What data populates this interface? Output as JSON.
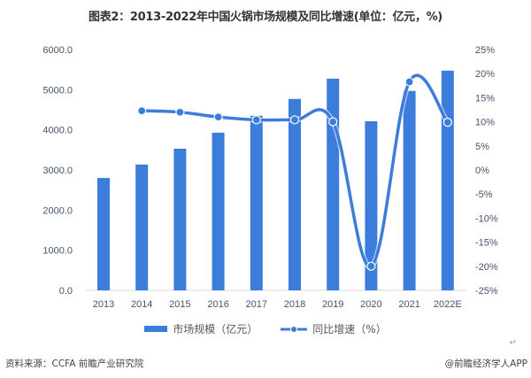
{
  "title": "图表2：2013-2022年中国火锅市场规模及同比增速(单位：亿元，%)",
  "legend": {
    "bar_label": "市场规模（亿元）",
    "line_label": "同比增速（%）"
  },
  "footer": {
    "source": "资料来源：CCFA 前瞻产业研究院",
    "credit": "@前瞻经济学人APP",
    "return_mark": "↵"
  },
  "colors": {
    "bar": "#3c7ddb",
    "line": "#3c7ddb",
    "axis_text": "#44546a",
    "axis_line": "#d9d9d9"
  },
  "chart_data": {
    "type": "bar",
    "title": "图表2：2013-2022年中国火锅市场规模及同比增速(单位：亿元，%)",
    "categories": [
      "2013",
      "2014",
      "2015",
      "2016",
      "2017",
      "2018",
      "2019",
      "2020",
      "2021",
      "2022E"
    ],
    "series": [
      {
        "name": "市场规模（亿元）",
        "type": "bar",
        "axis": "left",
        "values": [
          2800,
          3135,
          3530,
          3930,
          4350,
          4770,
          5275,
          4215,
          4970,
          5475
        ]
      },
      {
        "name": "同比增速（%）",
        "type": "line",
        "axis": "right",
        "values": [
          null,
          12.3,
          12.0,
          11.0,
          10.4,
          10.4,
          10.0,
          -20.0,
          18.3,
          9.9
        ]
      }
    ],
    "y_left": {
      "ticks": [
        "0.0",
        "1000.0",
        "2000.0",
        "3000.0",
        "4000.0",
        "5000.0",
        "6000.0"
      ],
      "range": [
        0,
        6000
      ]
    },
    "y_right": {
      "ticks": [
        "25%",
        "20%",
        "15%",
        "10%",
        "5%",
        "0%",
        "-5%",
        "-10%",
        "-15%",
        "-20%",
        "-25%"
      ],
      "range": [
        -25,
        25
      ]
    },
    "xlabel": "",
    "ylabel": "",
    "grid": false,
    "legend_position": "bottom"
  }
}
